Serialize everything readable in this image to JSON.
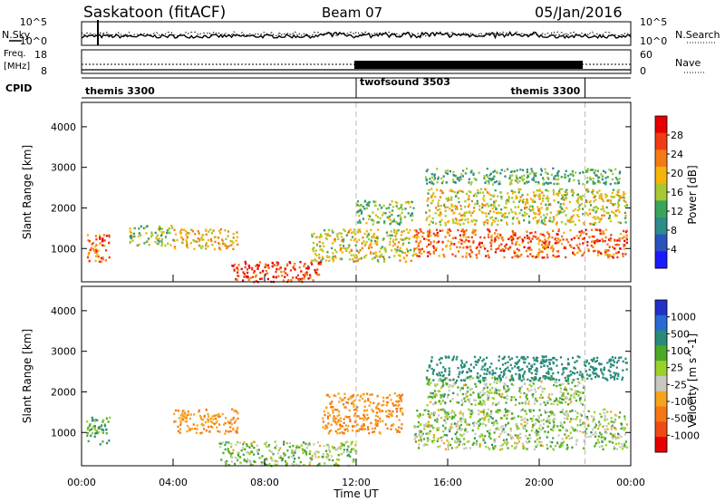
{
  "header": {
    "station": "Saskatoon (fitACF)",
    "beam": "Beam 07",
    "date": "05/Jan/2016"
  },
  "noise_panel": {
    "left_label": "N.Sky",
    "right_label": "N.Search",
    "left_ticks": [
      "10^5",
      "10^0"
    ],
    "right_ticks": [
      "10^5",
      "10^0"
    ]
  },
  "freq_panel": {
    "left_label_1": "Freq.",
    "left_label_2": "[MHz]",
    "right_label": "Nave",
    "left_ticks": [
      "18",
      "8"
    ],
    "right_ticks": [
      "60",
      "0"
    ]
  },
  "cpid_panel": {
    "label": "CPID",
    "modes": [
      {
        "name": "themis 3300",
        "start_hour": 0,
        "end_hour": 12
      },
      {
        "name": "twofsound 3503",
        "start_hour": 12,
        "end_hour": 22
      },
      {
        "name": "themis 3300",
        "start_hour": 22,
        "end_hour": 24
      }
    ]
  },
  "colors": {
    "power_scale": [
      "#1a1aff",
      "#2a52be",
      "#2e8b8b",
      "#3aa55a",
      "#a8c832",
      "#f5b40a",
      "#f57a14",
      "#f03c14",
      "#e60000"
    ],
    "velocity_scale": [
      "#2230c8",
      "#2a6ad2",
      "#2a8a7a",
      "#4caa28",
      "#9ad22a",
      "#c8c8c0",
      "#f5a41e",
      "#f57814",
      "#f04a14",
      "#e60000"
    ]
  },
  "chart_data": [
    {
      "type": "heatmap",
      "title": "",
      "xlabel": "",
      "ylabel": "Slant Range [km]",
      "colorbar_label": "Power [dB]",
      "colorbar_ticks": [
        "4",
        "8",
        "12",
        "16",
        "20",
        "24",
        "28"
      ],
      "x_ticks": [
        "00:00",
        "04:00",
        "08:00",
        "12:00",
        "16:00",
        "20:00",
        "00:00"
      ],
      "y_ticks": [
        "1000",
        "2000",
        "3000",
        "4000"
      ],
      "xlim_hours": [
        0,
        24
      ],
      "ylim_km": [
        180,
        4600
      ],
      "scatter_regions": [
        {
          "t0": 0.2,
          "t1": 1.2,
          "r0": 700,
          "r1": 1400,
          "value": 26
        },
        {
          "t0": 2.0,
          "t1": 4.0,
          "r0": 1100,
          "r1": 1600,
          "value": 14
        },
        {
          "t0": 4.0,
          "t1": 6.8,
          "r0": 1000,
          "r1": 1500,
          "value": 20
        },
        {
          "t0": 6.5,
          "t1": 10.5,
          "r0": 200,
          "r1": 700,
          "value": 28
        },
        {
          "t0": 10.0,
          "t1": 14.5,
          "r0": 700,
          "r1": 1500,
          "value": 18
        },
        {
          "t0": 12.0,
          "t1": 14.5,
          "r0": 1600,
          "r1": 2200,
          "value": 14
        },
        {
          "t0": 14.5,
          "t1": 23.8,
          "r0": 800,
          "r1": 1500,
          "value": 26
        },
        {
          "t0": 15.0,
          "t1": 23.8,
          "r0": 1600,
          "r1": 2500,
          "value": 18
        },
        {
          "t0": 15.0,
          "t1": 23.5,
          "r0": 2600,
          "r1": 3000,
          "value": 12
        }
      ]
    },
    {
      "type": "heatmap",
      "title": "",
      "xlabel": "Time UT",
      "ylabel": "Slant Range [km]",
      "colorbar_label": "Velocity [m s^-1]",
      "colorbar_ticks": [
        "1000",
        "500",
        "100",
        "25",
        "-25",
        "-100",
        "-500",
        "-1000"
      ],
      "x_ticks": [
        "00:00",
        "04:00",
        "08:00",
        "12:00",
        "16:00",
        "20:00",
        "00:00"
      ],
      "y_ticks": [
        "1000",
        "2000",
        "3000",
        "4000"
      ],
      "xlim_hours": [
        0,
        24
      ],
      "ylim_km": [
        180,
        4600
      ],
      "scatter_regions": [
        {
          "t0": 0.2,
          "t1": 1.2,
          "r0": 700,
          "r1": 1400,
          "value": 100
        },
        {
          "t0": 4.0,
          "t1": 6.8,
          "r0": 1000,
          "r1": 1600,
          "value": -500
        },
        {
          "t0": 6.0,
          "t1": 12.0,
          "r0": 200,
          "r1": 800,
          "value": 0
        },
        {
          "t0": 10.5,
          "t1": 14.0,
          "r0": 1000,
          "r1": 2000,
          "value": -500
        },
        {
          "t0": 14.5,
          "t1": 23.8,
          "r0": 600,
          "r1": 1600,
          "value": 0
        },
        {
          "t0": 15.0,
          "t1": 22.0,
          "r0": 1700,
          "r1": 2400,
          "value": 0
        },
        {
          "t0": 15.0,
          "t1": 23.8,
          "r0": 2300,
          "r1": 2900,
          "value": 300
        }
      ]
    }
  ]
}
